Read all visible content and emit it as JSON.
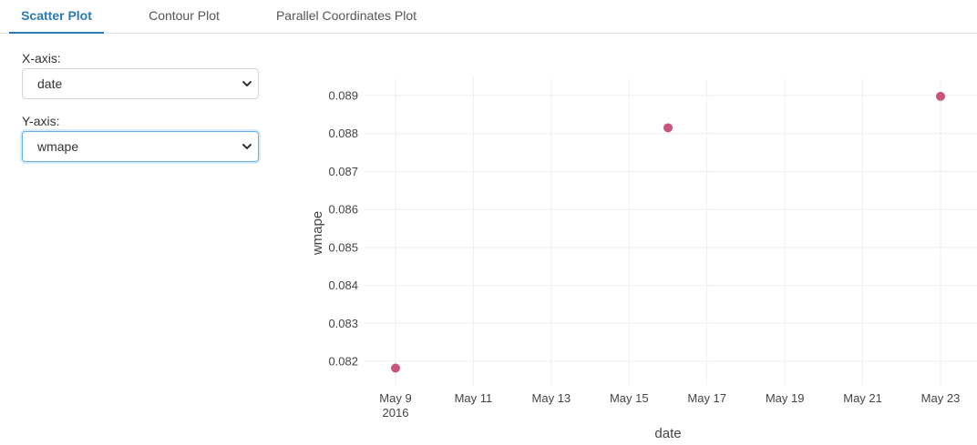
{
  "tabs": [
    {
      "label": "Scatter Plot",
      "active": true
    },
    {
      "label": "Contour Plot",
      "active": false
    },
    {
      "label": "Parallel Coordinates Plot",
      "active": false
    }
  ],
  "controls": {
    "x_axis_label": "X-axis:",
    "x_axis_value": "date",
    "y_axis_label": "Y-axis:",
    "y_axis_value": "wmape"
  },
  "colors": {
    "accent": "#2a7ab0",
    "marker": "#c9557f",
    "grid": "#eeeeee"
  },
  "chart_data": {
    "type": "scatter",
    "xlabel": "date",
    "ylabel": "wmape",
    "x_year_label": "2016",
    "x_ticks": [
      "May 9",
      "May 11",
      "May 13",
      "May 15",
      "May 17",
      "May 19",
      "May 21",
      "May 23"
    ],
    "y_ticks": [
      "0.082",
      "0.083",
      "0.084",
      "0.085",
      "0.086",
      "0.087",
      "0.088",
      "0.089"
    ],
    "xlim": [
      "2016-05-09",
      "2016-05-23"
    ],
    "ylim": [
      0.082,
      0.089
    ],
    "points": [
      {
        "x": "2016-05-09",
        "y": 0.08182
      },
      {
        "x": "2016-05-16",
        "y": 0.08815
      },
      {
        "x": "2016-05-23",
        "y": 0.08898
      }
    ],
    "grid": true,
    "legend": "none"
  }
}
